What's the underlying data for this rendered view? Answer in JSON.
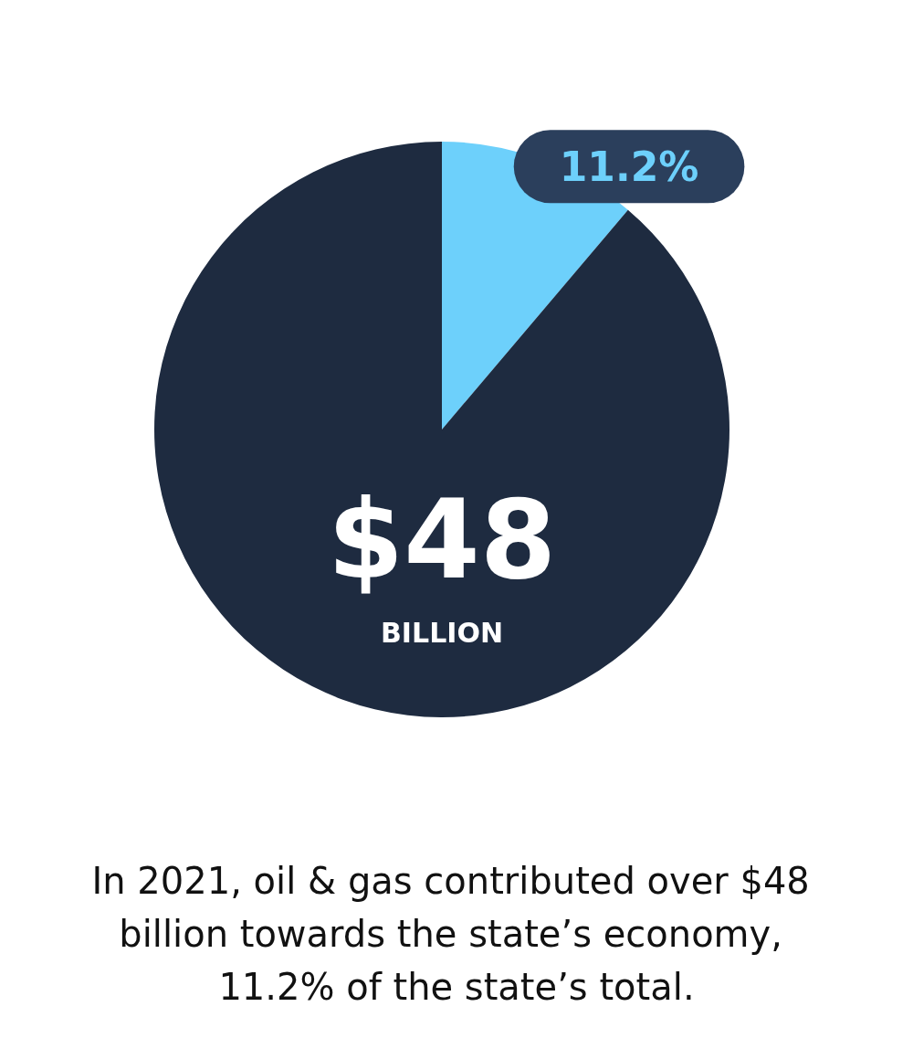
{
  "chart_data": {
    "type": "pie",
    "categories": [
      null,
      null
    ],
    "values": [
      11.2,
      88.8
    ],
    "colors": [
      "#6dd0fb",
      "#1e2b40"
    ],
    "value_labels": [
      "11.2%",
      null
    ],
    "annotations": [
      "$48",
      "BILLION",
      "In 2021, oil & gas contributed over $48 billion towards the state’s economy, 11.2% of the state’s total."
    ]
  }
}
